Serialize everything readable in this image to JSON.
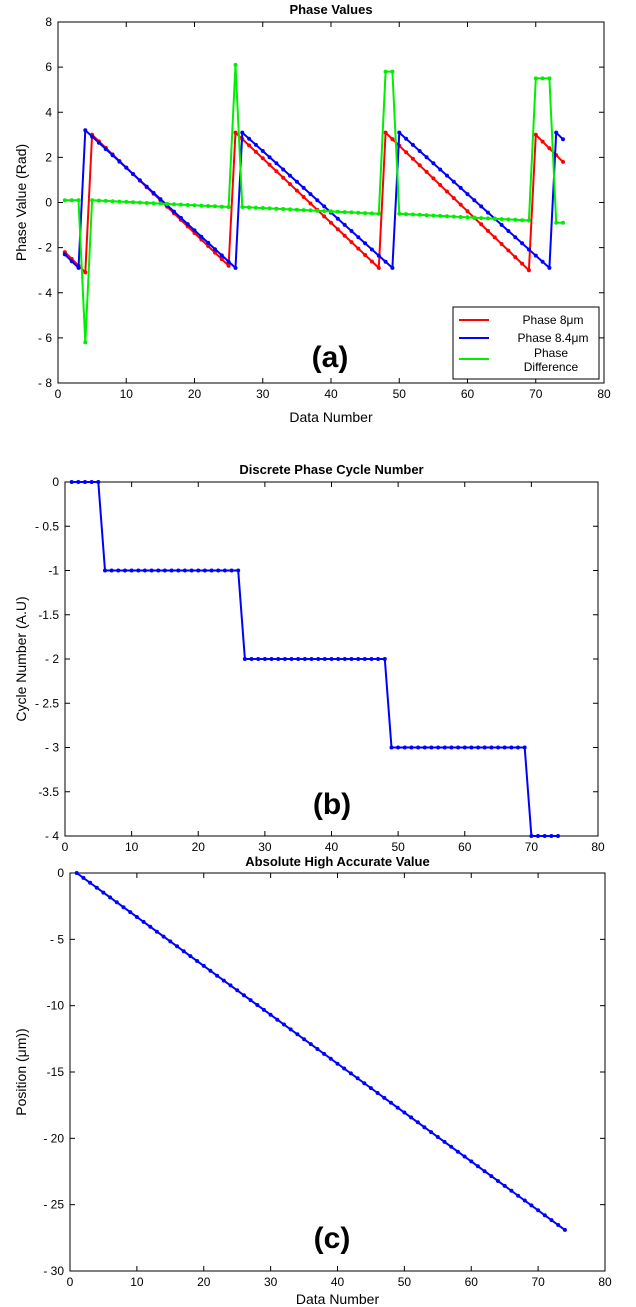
{
  "chart_data": [
    {
      "type": "line",
      "title": "Phase Values",
      "xlabel": "Data Number",
      "ylabel": "Phase Value (Rad)",
      "xlim": [
        0,
        80
      ],
      "ylim": [
        -8,
        8
      ],
      "xticks": [
        "0",
        "10",
        "20",
        "30",
        "40",
        "50",
        "60",
        "70",
        "80"
      ],
      "yticks": [
        "8",
        "6",
        "4",
        "2",
        "0",
        "- 2",
        "- 4",
        "- 6",
        "- 8"
      ],
      "annotation": "(a)",
      "legend_position": "bottom-right",
      "series": [
        {
          "name": "Phase 8μm",
          "color": "#ff0000",
          "points": [
            [
              1,
              -2.2
            ],
            [
              3,
              -2.8
            ],
            [
              4,
              -3.1
            ],
            [
              5,
              3.0
            ],
            [
              25,
              -2.8
            ],
            [
              26,
              3.1
            ],
            [
              47,
              -2.9
            ],
            [
              48,
              3.1
            ],
            [
              69,
              -3.0
            ],
            [
              70,
              3.0
            ],
            [
              74,
              1.8
            ]
          ]
        },
        {
          "name": "Phase 8.4μm",
          "color": "#0000ff",
          "points": [
            [
              1,
              -2.3
            ],
            [
              3,
              -2.9
            ],
            [
              4,
              3.2
            ],
            [
              26,
              -2.9
            ],
            [
              27,
              3.1
            ],
            [
              49,
              -2.9
            ],
            [
              50,
              3.1
            ],
            [
              72,
              -2.9
            ],
            [
              73,
              3.1
            ],
            [
              74,
              2.8
            ]
          ]
        },
        {
          "name": "Phase Difference",
          "color": "#00ee00",
          "points": [
            [
              1,
              0.1
            ],
            [
              3,
              0.1
            ],
            [
              4,
              -6.2
            ],
            [
              5,
              0.1
            ],
            [
              25,
              -0.2
            ],
            [
              26,
              6.1
            ],
            [
              27,
              -0.2
            ],
            [
              47,
              -0.5
            ],
            [
              48,
              5.8
            ],
            [
              49,
              5.8
            ],
            [
              50,
              -0.5
            ],
            [
              69,
              -0.8
            ],
            [
              70,
              5.5
            ],
            [
              72,
              5.5
            ],
            [
              73,
              -0.9
            ],
            [
              74,
              -0.9
            ]
          ]
        }
      ]
    },
    {
      "type": "line",
      "title": "Discrete Phase Cycle Number",
      "xlabel": "Data Number",
      "ylabel": "Cycle Number (A.U)",
      "xlim": [
        0,
        80
      ],
      "ylim": [
        -4,
        0
      ],
      "xticks": [
        "0",
        "10",
        "20",
        "30",
        "40",
        "50",
        "60",
        "70",
        "80"
      ],
      "yticks": [
        "0",
        "- 0.5",
        "-1",
        "-1.5",
        "- 2",
        "- 2.5",
        "- 3",
        "-3.5",
        "- 4"
      ],
      "annotation": "(b)",
      "series": [
        {
          "color": "#0000ff",
          "points": [
            [
              1,
              0
            ],
            [
              5,
              0
            ],
            [
              6,
              -1
            ],
            [
              26,
              -1
            ],
            [
              27,
              -2
            ],
            [
              48,
              -2
            ],
            [
              49,
              -3
            ],
            [
              69,
              -3
            ],
            [
              70,
              -4
            ],
            [
              74,
              -4
            ]
          ]
        }
      ]
    },
    {
      "type": "line",
      "title": "Absolute High Accurate Value",
      "xlabel": "Data Number",
      "ylabel": "Position (μm))",
      "xlim": [
        0,
        80
      ],
      "ylim": [
        -30,
        0
      ],
      "xticks": [
        "0",
        "10",
        "20",
        "30",
        "40",
        "50",
        "60",
        "70",
        "80"
      ],
      "yticks": [
        "0",
        "- 5",
        "-10",
        "-15",
        "- 20",
        "- 25",
        "- 30"
      ],
      "annotation": "(c)",
      "series": [
        {
          "color": "#0000ff",
          "points": [
            [
              1,
              0
            ],
            [
              74,
              -26.9
            ]
          ]
        }
      ]
    }
  ]
}
